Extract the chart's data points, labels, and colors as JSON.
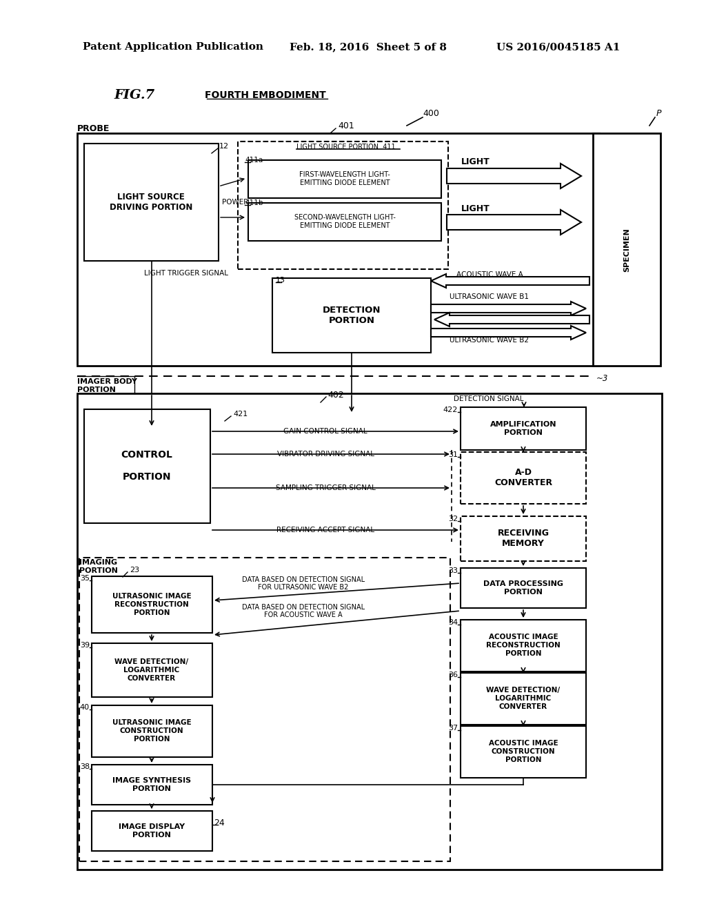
{
  "page_header_left": "Patent Application Publication",
  "page_header_center": "Feb. 18, 2016  Sheet 5 of 8",
  "page_header_right": "US 2016/0045185 A1",
  "background_color": "#ffffff"
}
